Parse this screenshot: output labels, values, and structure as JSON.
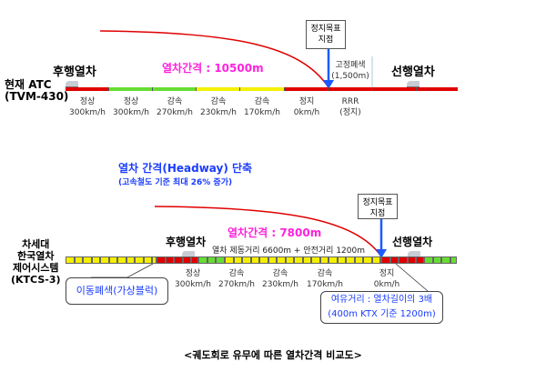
{
  "top": {
    "system_label_1": "현재 ATC",
    "system_label_2": "(TVM-430)",
    "follower": "후행열차",
    "leader": "선행열차",
    "headway": "열차간격 : 10500m",
    "stop_target_1": "정지목표",
    "stop_target_2": "지점",
    "fixed_block_1": "고정폐색",
    "fixed_block_2": "(1,500m)",
    "segments": [
      {
        "name": "정상",
        "speed": "300km/h"
      },
      {
        "name": "정상",
        "speed": "300km/h"
      },
      {
        "name": "감속",
        "speed": "270km/h"
      },
      {
        "name": "감속",
        "speed": "230km/h"
      },
      {
        "name": "감속",
        "speed": "170km/h"
      },
      {
        "name": "정지",
        "speed": "0km/h"
      },
      {
        "name": "RRR",
        "speed": "(정지)"
      }
    ]
  },
  "bottom": {
    "title": "열차 간격(Headway) 단축",
    "subtitle": "(고속철도 기준 최대 26% 증가)",
    "system_label": [
      "차세대",
      "한국열차",
      "제어시스템",
      "(KTCS-3)"
    ],
    "follower": "후행열차",
    "leader": "선행열차",
    "headway": "열차간격 : 7800m",
    "distance": "열차 제동거리 6600m + 안전거리 1200m",
    "stop_target_1": "정지목표",
    "stop_target_2": "지점",
    "segments": [
      {
        "name": "정상",
        "speed": "300km/h"
      },
      {
        "name": "감속",
        "speed": "270km/h"
      },
      {
        "name": "감속",
        "speed": "230km/h"
      },
      {
        "name": "감속",
        "speed": "170km/h"
      },
      {
        "name": "정지",
        "speed": "0km/h"
      }
    ],
    "moving_block": "이동폐색(가상블럭)",
    "margin_1": "여유거리 : 열차길이의 3배",
    "margin_2": "(400m KTX 기준 1200m)"
  },
  "caption": "<궤도회로 유무에 따른 열차간격 비교도>",
  "colors": {
    "red": "#e00000",
    "green": "#66dd33",
    "yellow": "#f4f000",
    "blue": "#1a5cff",
    "magenta": "#ff22dd"
  }
}
